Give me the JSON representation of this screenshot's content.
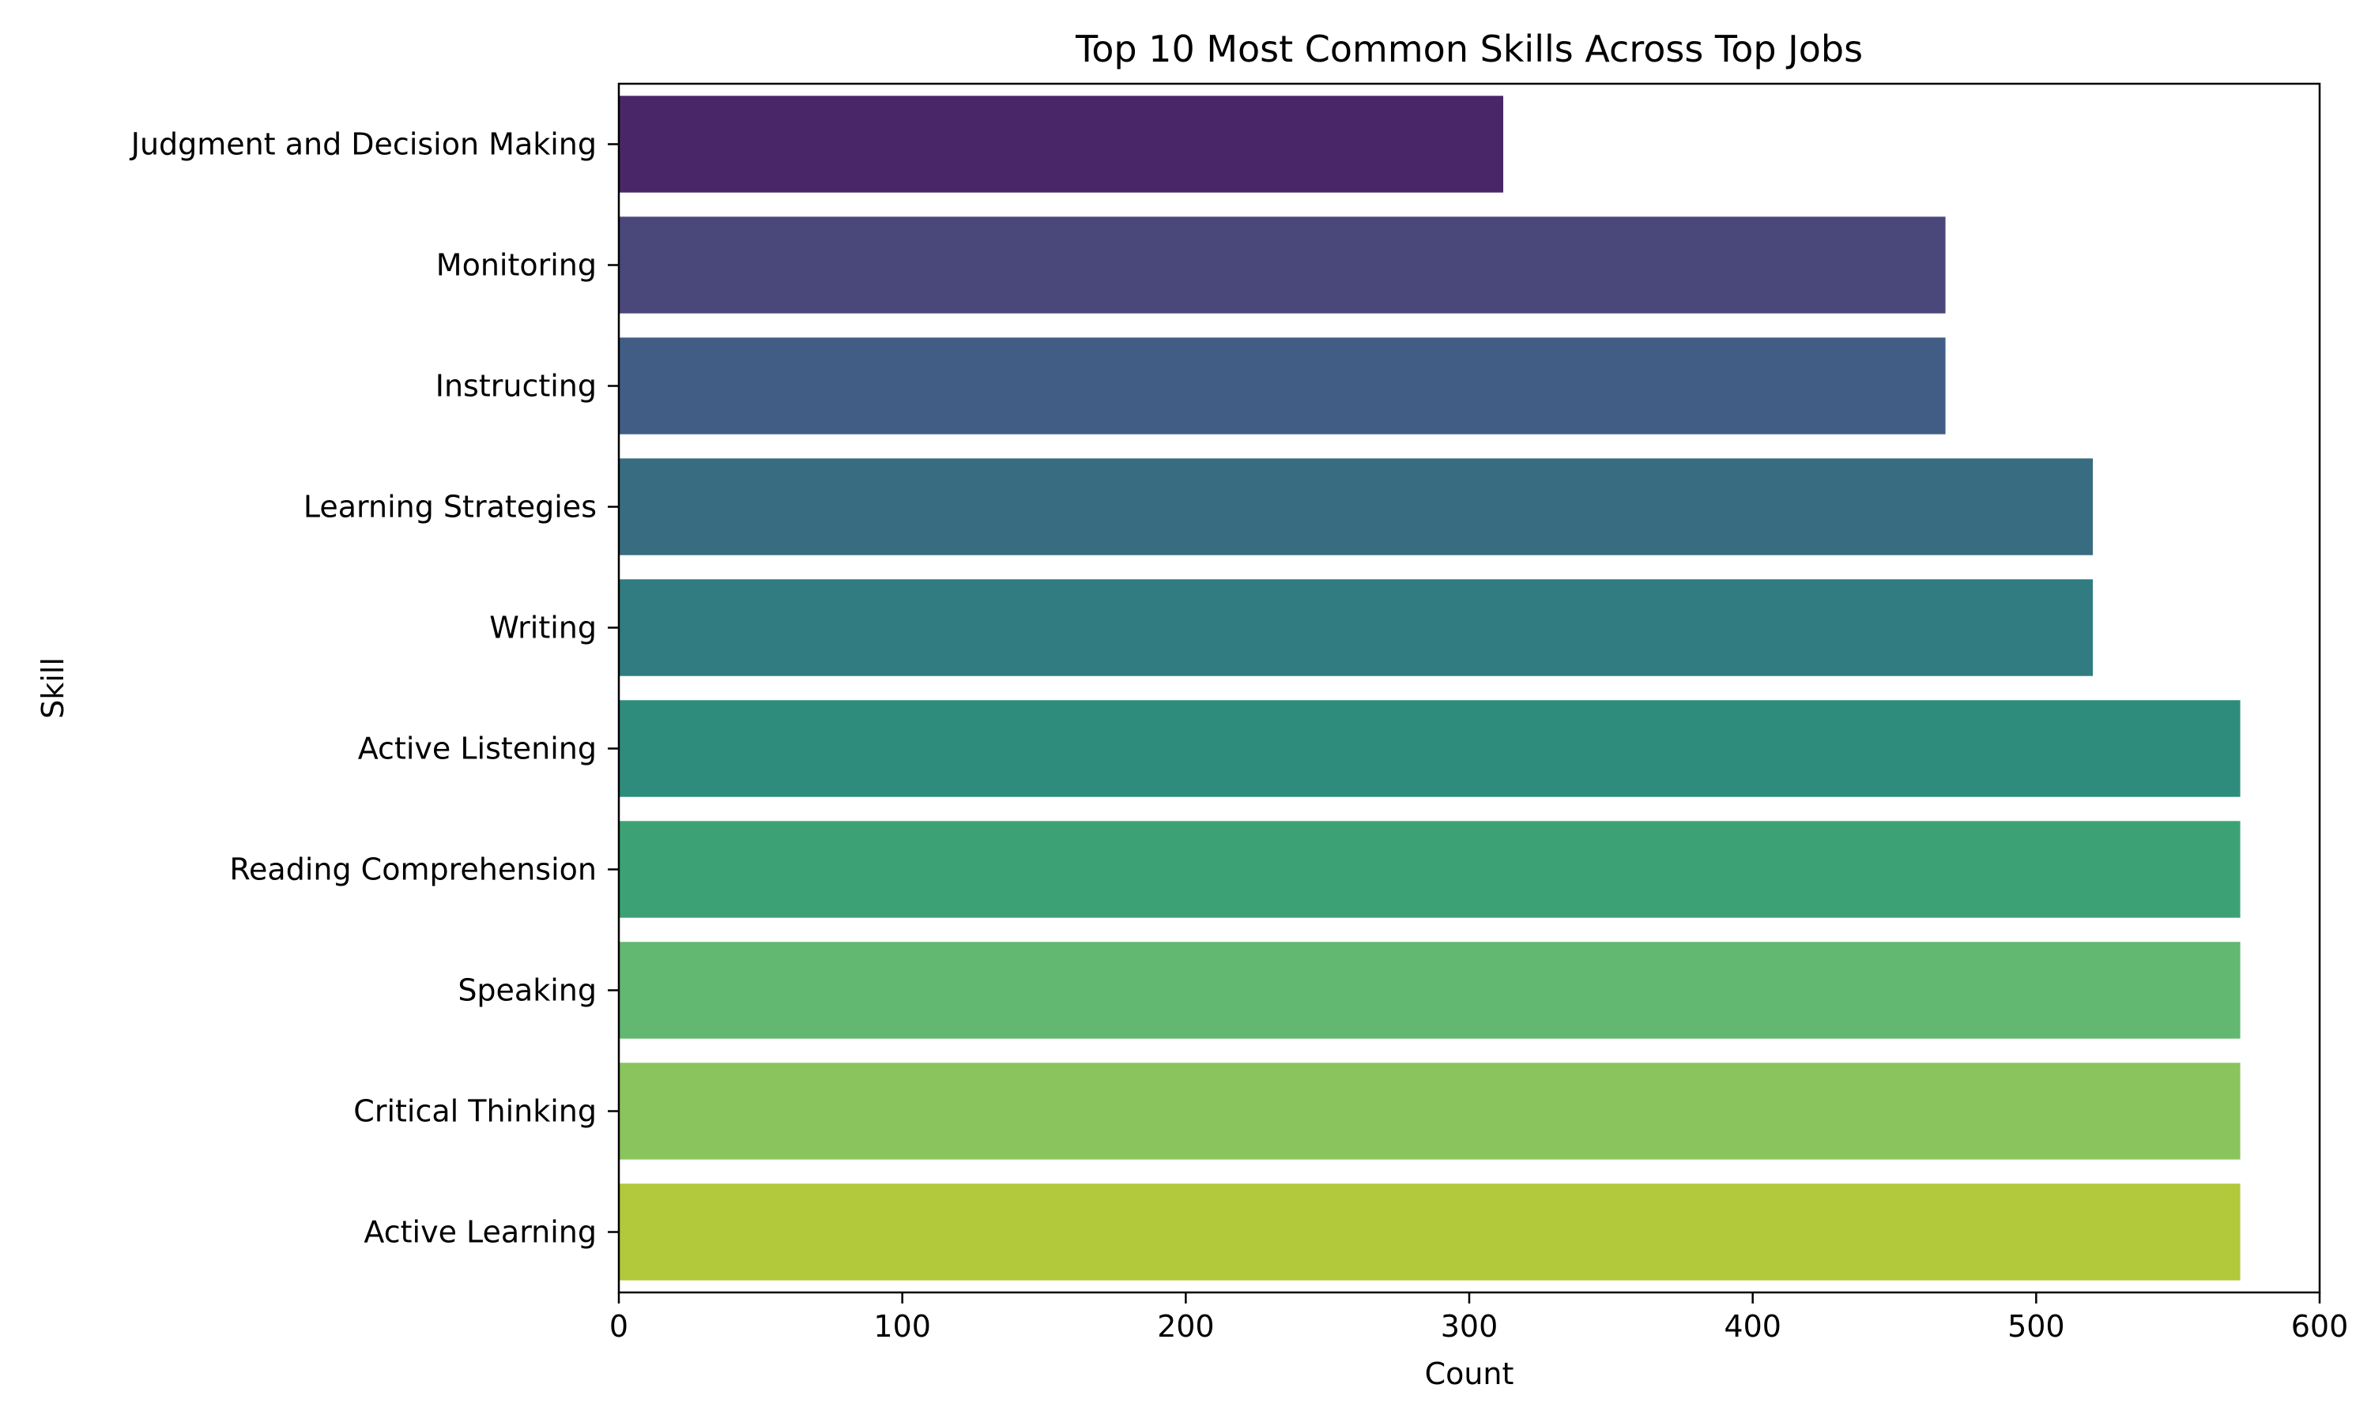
{
  "chart_data": {
    "type": "bar",
    "orientation": "horizontal",
    "title": "Top 10 Most Common Skills Across Top Jobs",
    "xlabel": "Count",
    "ylabel": "Skill",
    "xlim": [
      0,
      600
    ],
    "xticks": [
      0,
      100,
      200,
      300,
      400,
      500,
      600
    ],
    "grid": false,
    "legend": "none",
    "categories": [
      "Judgment and Decision Making",
      "Monitoring",
      "Instructing",
      "Learning Strategies",
      "Writing",
      "Active Listening",
      "Reading Comprehension",
      "Speaking",
      "Critical Thinking",
      "Active Learning"
    ],
    "values": [
      312,
      468,
      468,
      520,
      520,
      572,
      572,
      572,
      572,
      572
    ],
    "colors": [
      "#482667",
      "#4a477b",
      "#425d85",
      "#386c80",
      "#307c80",
      "#2e8c7d",
      "#3ca275",
      "#62b771",
      "#89c45d",
      "#b1c93a"
    ]
  }
}
